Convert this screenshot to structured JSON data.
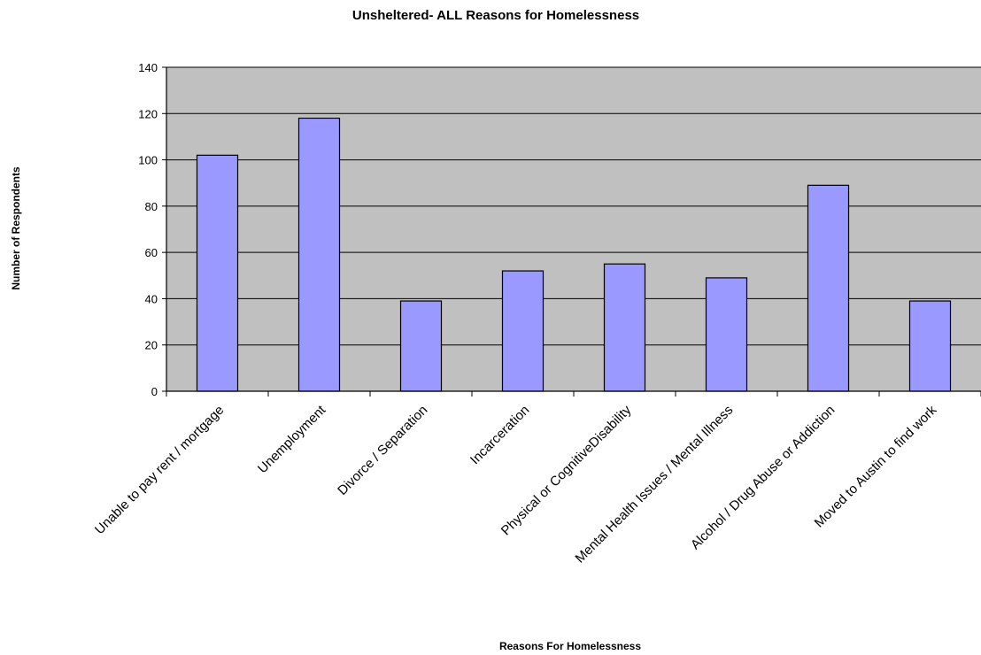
{
  "chart_data": {
    "type": "bar",
    "title": "Unsheltered- ALL Reasons for Homelessness",
    "xlabel": "Reasons For Homelessness",
    "ylabel": "Number of Respondents",
    "categories": [
      "Unable to pay rent / mortgage",
      "Unemployment",
      "Divorce / Separation",
      "Incarceration",
      "Physical or CognitiveDisability",
      "Mental Health Issues / Mental Illness",
      "Alcohol / Drug Abuse or Addiction",
      "Moved to Austin to find work"
    ],
    "values": [
      102,
      118,
      39,
      52,
      55,
      49,
      89,
      39
    ],
    "ylim": [
      0,
      140
    ],
    "yticks": [
      "0",
      "20",
      "40",
      "60",
      "80",
      "100",
      "120",
      "140"
    ],
    "grid": true,
    "legend": "none",
    "colors": {
      "plot_background": "#c0c0c0",
      "bar_fill": "#9999ff",
      "bar_stroke": "#000000",
      "gridline": "#000000"
    }
  }
}
